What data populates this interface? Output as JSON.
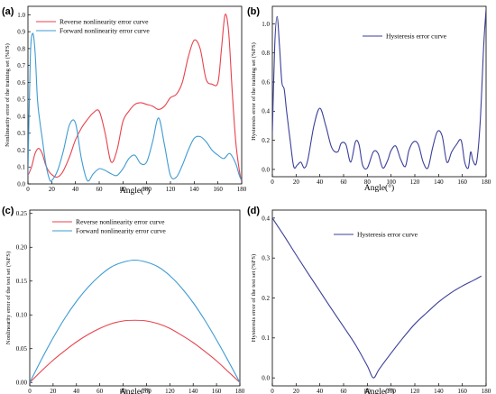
{
  "chart_data": [
    {
      "type": "line",
      "panel_label": "(a)",
      "xlabel": "Angle(°)",
      "ylabel": "Nonlinearity error of the training set (%FS)",
      "xlim": [
        0,
        180
      ],
      "ylim": [
        0,
        1.05
      ],
      "xticks": [
        0,
        20,
        40,
        60,
        80,
        100,
        120,
        140,
        160,
        180
      ],
      "yticks": [
        "0.0",
        "0.1",
        "0.2",
        "0.3",
        "0.4",
        "0.5",
        "0.6",
        "0.7",
        "0.8",
        "0.9",
        "1.0"
      ],
      "legend_position": "top-left",
      "series": [
        {
          "name": "Reverse nonlinearity error curve",
          "color": "#e8424d",
          "x": [
            0,
            3,
            6,
            9,
            12,
            15,
            18,
            21,
            24,
            27,
            30,
            35,
            40,
            45,
            50,
            55,
            60,
            65,
            70,
            75,
            80,
            85,
            90,
            95,
            100,
            105,
            110,
            115,
            120,
            125,
            130,
            135,
            140,
            145,
            150,
            155,
            160,
            163,
            166,
            169,
            172,
            175,
            178,
            180
          ],
          "y": [
            0.05,
            0.1,
            0.18,
            0.21,
            0.18,
            0.11,
            0.07,
            0.05,
            0.04,
            0.05,
            0.08,
            0.16,
            0.26,
            0.33,
            0.38,
            0.42,
            0.43,
            0.3,
            0.13,
            0.2,
            0.37,
            0.43,
            0.47,
            0.48,
            0.47,
            0.46,
            0.44,
            0.46,
            0.51,
            0.53,
            0.6,
            0.75,
            0.85,
            0.8,
            0.62,
            0.59,
            0.6,
            0.8,
            1.0,
            0.9,
            0.55,
            0.25,
            0.08,
            0.01
          ]
        },
        {
          "name": "Forward  nonlinearity error curve",
          "color": "#3e9bd2",
          "x": [
            0,
            2,
            4,
            6,
            8,
            10,
            12,
            15,
            18,
            20,
            25,
            30,
            35,
            40,
            45,
            50,
            55,
            60,
            65,
            70,
            75,
            80,
            85,
            90,
            95,
            100,
            105,
            110,
            115,
            120,
            125,
            130,
            135,
            140,
            145,
            150,
            155,
            160,
            165,
            170,
            175,
            178,
            180
          ],
          "y": [
            0.05,
            0.75,
            0.89,
            0.78,
            0.5,
            0.37,
            0.27,
            0.12,
            0.03,
            0.02,
            0.08,
            0.2,
            0.35,
            0.36,
            0.15,
            0.02,
            0.06,
            0.09,
            0.08,
            0.06,
            0.05,
            0.09,
            0.15,
            0.17,
            0.12,
            0.13,
            0.25,
            0.39,
            0.23,
            0.05,
            0.04,
            0.11,
            0.2,
            0.27,
            0.28,
            0.25,
            0.2,
            0.17,
            0.15,
            0.18,
            0.12,
            0.05,
            0.02
          ]
        }
      ]
    },
    {
      "type": "line",
      "panel_label": "(b)",
      "xlabel": "Angle(°)",
      "ylabel": "Hysteresis error of the training set (%FS)",
      "xlim": [
        0,
        180
      ],
      "ylim": [
        -0.05,
        1.12
      ],
      "xticks": [
        0,
        20,
        40,
        60,
        80,
        100,
        120,
        140,
        160,
        180
      ],
      "yticks": [
        "0.0",
        "0.2",
        "0.4",
        "0.6",
        "0.8",
        "1.0"
      ],
      "legend_position": "top-center",
      "series": [
        {
          "name": "Hysteresis error curve",
          "color": "#3b3f99",
          "x": [
            0,
            2,
            4,
            6,
            8,
            10,
            12,
            15,
            18,
            21,
            24,
            27,
            30,
            35,
            40,
            45,
            50,
            55,
            58,
            62,
            66,
            70,
            73,
            76,
            80,
            85,
            89,
            93,
            97,
            100,
            104,
            108,
            112,
            115,
            119,
            123,
            127,
            131,
            135,
            139,
            143,
            147,
            151,
            155,
            159,
            162,
            165,
            167,
            169,
            172,
            175,
            178,
            180
          ],
          "y": [
            0.25,
            0.85,
            1.05,
            0.85,
            0.6,
            0.55,
            0.4,
            0.2,
            0.02,
            0.03,
            0.05,
            0.01,
            0.07,
            0.3,
            0.42,
            0.3,
            0.15,
            0.12,
            0.18,
            0.17,
            0.05,
            0.19,
            0.17,
            0.03,
            0.01,
            0.12,
            0.11,
            0.01,
            0.06,
            0.13,
            0.16,
            0.07,
            0.02,
            0.13,
            0.19,
            0.17,
            0.05,
            0.01,
            0.15,
            0.26,
            0.23,
            0.05,
            0.12,
            0.17,
            0.2,
            0.05,
            0.01,
            0.12,
            0.06,
            0.05,
            0.32,
            0.85,
            1.1
          ]
        }
      ]
    },
    {
      "type": "line",
      "panel_label": "(c)",
      "xlabel": "Angle(°)",
      "ylabel": "Nonlinearity error of the test set (%FS)",
      "xlim": [
        0,
        180
      ],
      "ylim": [
        -0.005,
        0.255
      ],
      "xticks": [
        0,
        20,
        40,
        60,
        80,
        100,
        120,
        140,
        160,
        180
      ],
      "yticks": [
        "0.00",
        "0.05",
        "0.10",
        "0.15",
        "0.20",
        "0.25"
      ],
      "legend_position": "top-center",
      "series": [
        {
          "name": "Reverse nonlinearity error curve",
          "color": "#e8424d",
          "x": [
            0,
            10,
            20,
            30,
            40,
            50,
            60,
            70,
            80,
            90,
            100,
            110,
            120,
            130,
            140,
            150,
            160,
            170,
            180
          ],
          "y": [
            0.0,
            0.017,
            0.033,
            0.047,
            0.06,
            0.071,
            0.08,
            0.087,
            0.091,
            0.092,
            0.091,
            0.087,
            0.08,
            0.07,
            0.059,
            0.046,
            0.032,
            0.016,
            0.0
          ]
        },
        {
          "name": "Forward nonlinearity error curve",
          "color": "#3e9bd2",
          "x": [
            0,
            10,
            20,
            30,
            40,
            50,
            60,
            70,
            80,
            90,
            100,
            110,
            120,
            130,
            140,
            150,
            160,
            170,
            180
          ],
          "y": [
            0.0,
            0.034,
            0.066,
            0.095,
            0.12,
            0.141,
            0.158,
            0.171,
            0.178,
            0.181,
            0.178,
            0.171,
            0.158,
            0.14,
            0.118,
            0.092,
            0.063,
            0.032,
            0.0
          ]
        }
      ]
    },
    {
      "type": "line",
      "panel_label": "(d)",
      "xlabel": "Angle(°)",
      "ylabel": "Hysteresis error of the test set (%FS)",
      "xlim": [
        0,
        180
      ],
      "ylim": [
        -0.02,
        0.42
      ],
      "xticks": [
        0,
        20,
        40,
        60,
        80,
        100,
        120,
        140,
        160,
        180
      ],
      "yticks": [
        "0.0",
        "0.1",
        "0.2",
        "0.3",
        "0.4"
      ],
      "legend_position": "top-center",
      "series": [
        {
          "name": "Hysteresis error curve",
          "color": "#3b3f99",
          "x": [
            0,
            10,
            20,
            30,
            40,
            50,
            60,
            70,
            80,
            85,
            90,
            100,
            110,
            120,
            130,
            140,
            150,
            160,
            170,
            176
          ],
          "y": [
            0.4,
            0.355,
            0.308,
            0.262,
            0.217,
            0.172,
            0.128,
            0.083,
            0.03,
            0.0,
            0.022,
            0.062,
            0.1,
            0.135,
            0.163,
            0.19,
            0.212,
            0.23,
            0.245,
            0.255
          ]
        }
      ]
    }
  ]
}
